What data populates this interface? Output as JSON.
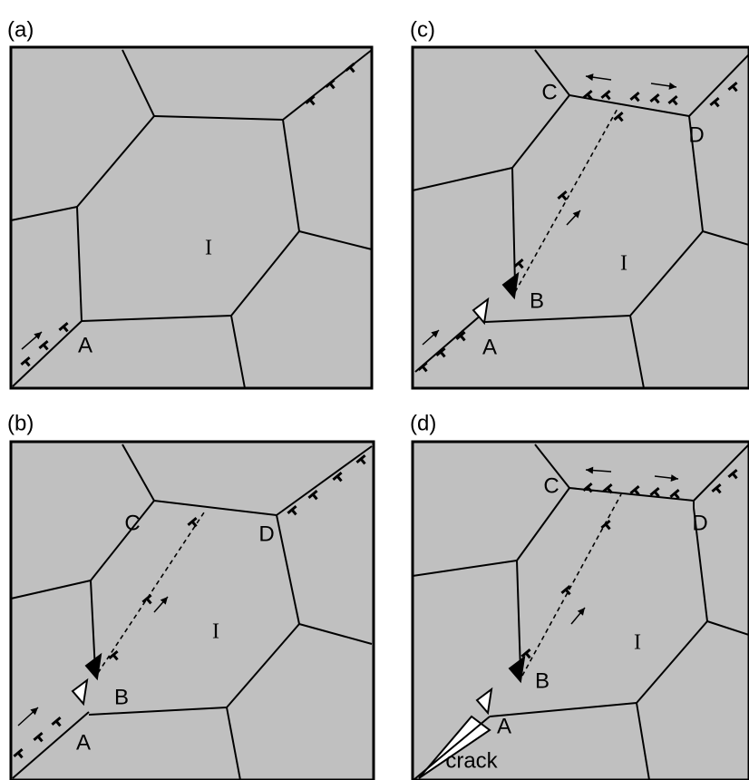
{
  "panels": [
    {
      "label": "(a)",
      "grain": "I",
      "points": [
        "A"
      ]
    },
    {
      "label": "(b)",
      "grain": "I",
      "points": [
        "A",
        "B",
        "C",
        "D"
      ]
    },
    {
      "label": "(c)",
      "grain": "I",
      "points": [
        "A",
        "B",
        "C",
        "D"
      ]
    },
    {
      "label": "(d)",
      "grain": "I",
      "points": [
        "A",
        "B",
        "C",
        "D"
      ],
      "crack": "crack"
    }
  ]
}
